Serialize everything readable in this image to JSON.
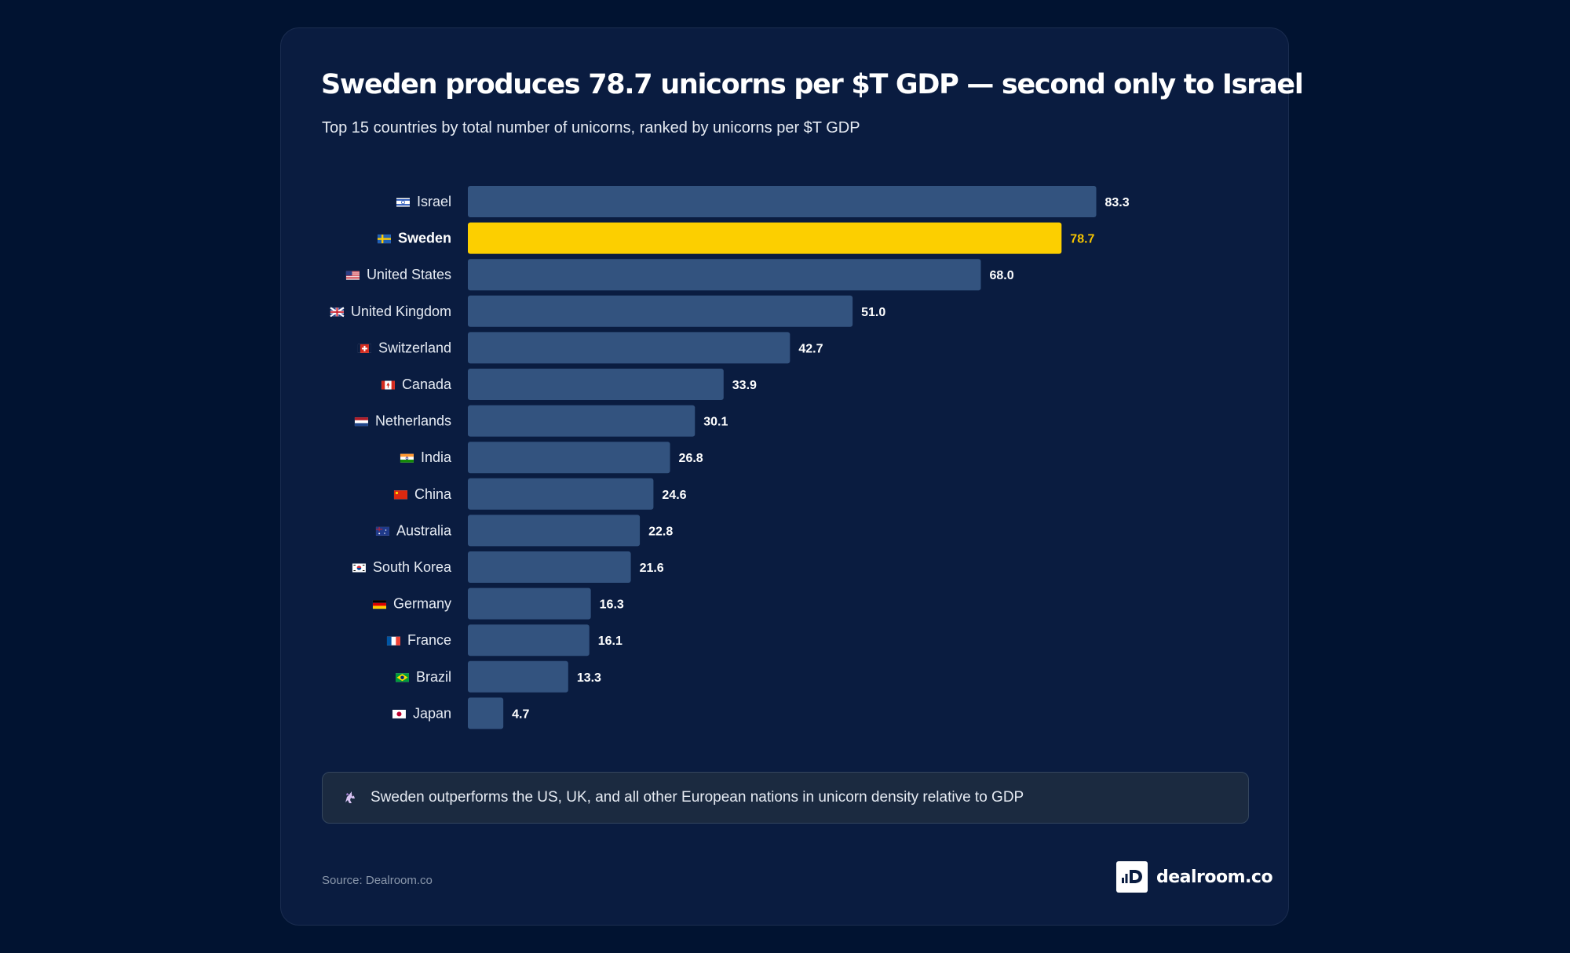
{
  "title": "Sweden produces 78.7 unicorns per $T GDP — second only to Israel",
  "subtitle": "Top 15 countries by total number of unicorns, ranked by unicorns per $T GDP",
  "chart_data": {
    "type": "bar",
    "orientation": "horizontal",
    "title": "Sweden produces 78.7 unicorns per $T GDP — second only to Israel",
    "subtitle": "Top 15 countries by total number of unicorns, ranked by unicorns per $T GDP",
    "xlabel": "",
    "ylabel": "",
    "grid": false,
    "xlim": [
      0,
      100
    ],
    "categories": [
      "Israel",
      "Sweden",
      "United States",
      "United Kingdom",
      "Switzerland",
      "Canada",
      "Netherlands",
      "India",
      "China",
      "Australia",
      "South Korea",
      "Germany",
      "France",
      "Brazil",
      "Japan"
    ],
    "flags": [
      "IL",
      "SE",
      "US",
      "GB",
      "CH",
      "CA",
      "NL",
      "IN",
      "CN",
      "AU",
      "KR",
      "DE",
      "FR",
      "BR",
      "JP"
    ],
    "values": [
      83.3,
      78.7,
      68.0,
      51.0,
      42.7,
      33.9,
      30.1,
      26.8,
      24.6,
      22.8,
      21.6,
      16.3,
      16.1,
      13.3,
      4.7
    ],
    "value_labels": [
      "83.3",
      "78.7",
      "68.0",
      "51.0",
      "42.7",
      "33.9",
      "30.1",
      "26.8",
      "24.6",
      "22.8",
      "21.6",
      "16.3",
      "16.1",
      "13.3",
      "4.7"
    ],
    "highlight": "Sweden",
    "colors": {
      "bar": "#33537f",
      "highlight": "#fccf00",
      "highlight_label": "#f5c400",
      "label": "#e6ebf3",
      "value": "#ffffff"
    }
  },
  "callout": {
    "icon": "unicorn-icon",
    "text": "Sweden outperforms the US, UK, and all other European nations in unicorn density relative to GDP"
  },
  "footer": {
    "source": "Source: Dealroom.co",
    "brand": "dealroom.co"
  }
}
